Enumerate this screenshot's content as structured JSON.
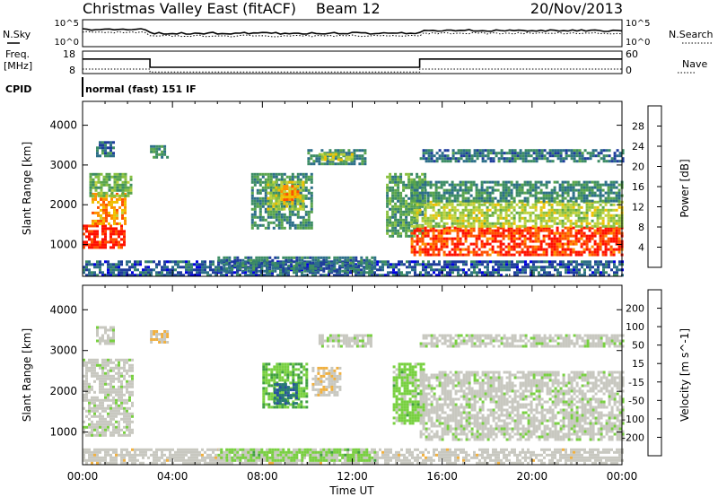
{
  "header": {
    "station": "Christmas Valley East (fitACF)",
    "beam": "Beam 12",
    "date": "20/Nov/2013"
  },
  "status_panels": {
    "sky_label": "N.Sky",
    "sky_ticks": [
      "10^5",
      "10^0"
    ],
    "search_label": "N.Search",
    "search_ticks": [
      "10^5",
      "10^0"
    ],
    "freq_label_1": "Freq.",
    "freq_label_2": "[MHz]",
    "freq_ticks": [
      "18",
      "8"
    ],
    "nave_label": "Nave",
    "nave_ticks": [
      "60",
      "0"
    ],
    "cpid_label": "CPID",
    "cpid_value": "normal (fast) 151 IF",
    "freq_trace": {
      "times_h": [
        0,
        3.0,
        3.0,
        15.0,
        15.0,
        24
      ],
      "mhz": [
        14.5,
        14.5,
        10.8,
        10.8,
        14.5,
        14.5
      ]
    },
    "nave_trace": {
      "times_h": [
        0,
        3.0,
        3.0,
        15.0,
        15.0,
        24
      ],
      "value": [
        12,
        12,
        4,
        4,
        12,
        12
      ]
    }
  },
  "chart_data": [
    {
      "type": "heatmap",
      "name": "power",
      "ylabel": "Slant Range [km]",
      "yticks": [
        "1000",
        "2000",
        "3000",
        "4000"
      ],
      "ylim": [
        200,
        4600
      ],
      "xlim": [
        0,
        24
      ],
      "colorbar": {
        "label": "Power [dB]",
        "ticks": [
          "28",
          "24",
          "20",
          "16",
          "12",
          "8",
          "4"
        ],
        "range": [
          0,
          32
        ],
        "colors": [
          "#0000e0",
          "#1e3c9c",
          "#2c6e88",
          "#3c8c64",
          "#58a44c",
          "#88c040",
          "#c0d23c",
          "#f0c000",
          "#ff9000",
          "#ff5000",
          "#ff1000"
        ]
      },
      "regions": [
        {
          "t": [
            0.0,
            1.8
          ],
          "r": [
            900,
            1500
          ],
          "level": 30
        },
        {
          "t": [
            0.4,
            1.9
          ],
          "r": [
            1500,
            2300
          ],
          "level": 24
        },
        {
          "t": [
            0.3,
            2.1
          ],
          "r": [
            2200,
            2800
          ],
          "level": 14
        },
        {
          "t": [
            0.6,
            1.4
          ],
          "r": [
            3200,
            3600
          ],
          "level": 8
        },
        {
          "t": [
            3.0,
            3.8
          ],
          "r": [
            3200,
            3500
          ],
          "level": 10
        },
        {
          "t": [
            7.5,
            10.2
          ],
          "r": [
            1400,
            2800
          ],
          "level": 10
        },
        {
          "t": [
            8.2,
            9.8
          ],
          "r": [
            1900,
            2600
          ],
          "level": 18
        },
        {
          "t": [
            8.8,
            9.6
          ],
          "r": [
            2100,
            2500
          ],
          "level": 24
        },
        {
          "t": [
            10.0,
            12.6
          ],
          "r": [
            3000,
            3400
          ],
          "level": 10
        },
        {
          "t": [
            10.5,
            12.0
          ],
          "r": [
            3100,
            3300
          ],
          "level": 18
        },
        {
          "t": [
            13.5,
            15.2
          ],
          "r": [
            1200,
            2800
          ],
          "level": 12
        },
        {
          "t": [
            14.6,
            24.0
          ],
          "r": [
            750,
            1450
          ],
          "level": 29
        },
        {
          "t": [
            14.6,
            24.0
          ],
          "r": [
            1450,
            2100
          ],
          "level": 18
        },
        {
          "t": [
            14.6,
            24.0
          ],
          "r": [
            2100,
            2600
          ],
          "level": 10
        },
        {
          "t": [
            15.0,
            24.0
          ],
          "r": [
            3100,
            3400
          ],
          "level": 8
        },
        {
          "t": [
            0.0,
            24.0
          ],
          "r": [
            250,
            600
          ],
          "level": 6
        },
        {
          "t": [
            6.0,
            13.0
          ],
          "r": [
            300,
            700
          ],
          "level": 8
        }
      ]
    },
    {
      "type": "heatmap",
      "name": "velocity",
      "ylabel": "Slant Range [km]",
      "yticks": [
        "1000",
        "2000",
        "3000",
        "4000"
      ],
      "ylim": [
        200,
        4600
      ],
      "xlim": [
        0,
        24
      ],
      "xticks": [
        "00:00",
        "04:00",
        "08:00",
        "12:00",
        "16:00",
        "20:00",
        "00:00"
      ],
      "xlabel": "Time UT",
      "colorbar": {
        "label": "Velocity [m s^-1]",
        "ticks": [
          "200",
          "100",
          "50",
          "15",
          "-15",
          "-50",
          "-100",
          "-200"
        ],
        "range": [
          -250,
          250
        ],
        "colors": [
          "#e00000",
          "#ff4800",
          "#ff9000",
          "#f0b040",
          "#c8c8c0",
          "#c8c8c0",
          "#78d040",
          "#40a040",
          "#287878",
          "#2850a0",
          "#1e32c8"
        ]
      },
      "regions": [
        {
          "t": [
            0.0,
            2.2
          ],
          "r": [
            900,
            2800
          ],
          "level": 0
        },
        {
          "t": [
            0.6,
            1.4
          ],
          "r": [
            3200,
            3600
          ],
          "level": 0
        },
        {
          "t": [
            3.0,
            3.8
          ],
          "r": [
            3200,
            3500
          ],
          "level": -60
        },
        {
          "t": [
            8.0,
            10.0
          ],
          "r": [
            1600,
            2700
          ],
          "level": 60
        },
        {
          "t": [
            8.5,
            9.5
          ],
          "r": [
            1700,
            2200
          ],
          "level": 150
        },
        {
          "t": [
            10.2,
            11.4
          ],
          "r": [
            1900,
            2600
          ],
          "level": -60
        },
        {
          "t": [
            10.5,
            12.8
          ],
          "r": [
            3100,
            3400
          ],
          "level": 0
        },
        {
          "t": [
            13.8,
            15.2
          ],
          "r": [
            1200,
            2700
          ],
          "level": 40
        },
        {
          "t": [
            15.0,
            24.0
          ],
          "r": [
            800,
            2500
          ],
          "level": 0
        },
        {
          "t": [
            15.0,
            24.0
          ],
          "r": [
            3100,
            3400
          ],
          "level": 0
        },
        {
          "t": [
            0.0,
            24.0
          ],
          "r": [
            250,
            600
          ],
          "level": -40
        },
        {
          "t": [
            6.0,
            13.0
          ],
          "r": [
            300,
            600
          ],
          "level": 40
        }
      ]
    }
  ]
}
